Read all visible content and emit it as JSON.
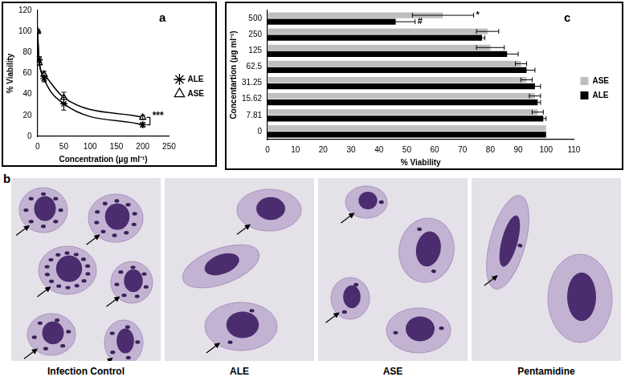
{
  "chart_data": [
    {
      "type": "line",
      "title": "a",
      "x_label": "Concentration (μg ml⁻¹)",
      "y_label": "% Viability",
      "x": [
        0,
        3.125,
        12.5,
        50,
        200
      ],
      "series": [
        {
          "name": "ALE",
          "color": "#000000",
          "marker": "star",
          "line_style": "solid",
          "values": [
            100,
            73,
            55,
            31,
            11
          ],
          "errors": [
            0,
            3,
            3,
            6,
            2
          ]
        },
        {
          "name": "ASE",
          "color": "#000000",
          "marker": "triangle",
          "line_style": "solid",
          "values": [
            100,
            70,
            59,
            37,
            18
          ],
          "errors": [
            0,
            2,
            3,
            5,
            2
          ]
        }
      ],
      "xlim": [
        0,
        250
      ],
      "xticks": [
        0,
        50,
        100,
        150,
        200,
        250
      ],
      "ylim": [
        0,
        120
      ],
      "yticks": [
        0,
        20,
        40,
        60,
        80,
        100,
        120
      ],
      "grid": false,
      "legend": "right",
      "annotations": [
        {
          "text": "***",
          "x": 200
        }
      ]
    },
    {
      "type": "bar",
      "title": "c",
      "orientation": "horizontal",
      "x_label": "% Viability",
      "y_label": "Concentartion (μg ml⁻¹)",
      "categories": [
        "500",
        "250",
        "125",
        "62.5",
        "31.25",
        "15.62",
        "7.81",
        "0"
      ],
      "series": [
        {
          "name": "ASE",
          "color": "#bfbfbf",
          "values": [
            63,
            79,
            80,
            91,
            93,
            96,
            97,
            100
          ],
          "errors": [
            11,
            4,
            5,
            2,
            2,
            2,
            2,
            0
          ]
        },
        {
          "name": "ALE",
          "color": "#000000",
          "values": [
            46,
            77,
            86,
            93,
            96,
            97,
            99,
            100
          ],
          "errors": [
            7,
            1,
            4,
            3,
            2,
            1,
            1,
            0
          ]
        }
      ],
      "xlim": [
        0,
        110
      ],
      "xticks": [
        0,
        10,
        20,
        30,
        40,
        50,
        60,
        70,
        80,
        90,
        100,
        110
      ],
      "grid": false,
      "legend": "right",
      "annotations": [
        {
          "text": "*",
          "series": "ASE",
          "category": "500"
        },
        {
          "text": "#",
          "series": "ALE",
          "category": "500"
        }
      ]
    }
  ],
  "panel_b": {
    "label": "b",
    "captions": [
      "Infection Control",
      "ALE",
      "ASE",
      "Pentamidine"
    ]
  }
}
